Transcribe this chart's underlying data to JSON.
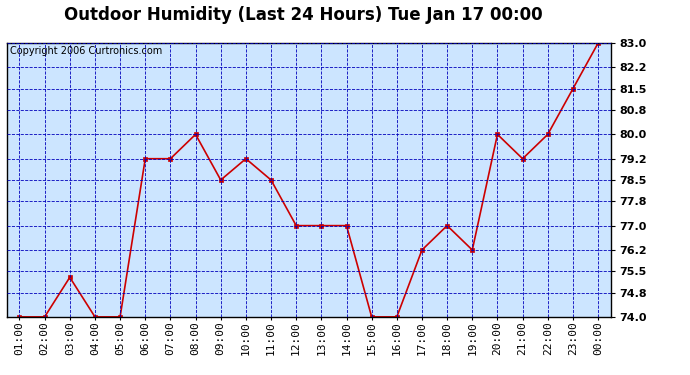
{
  "title": "Outdoor Humidity (Last 24 Hours) Tue Jan 17 00:00",
  "copyright": "Copyright 2006 Curtronics.com",
  "x_labels": [
    "01:00",
    "02:00",
    "03:00",
    "04:00",
    "05:00",
    "06:00",
    "07:00",
    "08:00",
    "09:00",
    "10:00",
    "11:00",
    "12:00",
    "13:00",
    "14:00",
    "15:00",
    "16:00",
    "17:00",
    "18:00",
    "19:00",
    "20:00",
    "21:00",
    "22:00",
    "23:00",
    "00:00"
  ],
  "y_values": [
    74.0,
    74.0,
    75.3,
    74.0,
    74.0,
    79.2,
    79.2,
    80.0,
    78.5,
    79.2,
    78.5,
    77.0,
    77.0,
    77.0,
    74.0,
    74.0,
    76.2,
    77.0,
    76.2,
    80.0,
    79.2,
    80.0,
    81.5,
    83.0
  ],
  "ylim_min": 74.0,
  "ylim_max": 83.0,
  "ytick_values": [
    74.0,
    74.8,
    75.5,
    76.2,
    77.0,
    77.8,
    78.5,
    79.2,
    80.0,
    80.8,
    81.5,
    82.2,
    83.0
  ],
  "ytick_labels": [
    "74.0",
    "74.8",
    "75.5",
    "76.2",
    "77.0",
    "77.8",
    "78.5",
    "79.2",
    "80.0",
    "80.8",
    "81.5",
    "82.2",
    "83.0"
  ],
  "line_color": "#cc0000",
  "marker": "s",
  "marker_size": 3,
  "bg_color": "#cce5ff",
  "outer_bg_color": "#ffffff",
  "grid_color": "#0000bb",
  "title_fontsize": 12,
  "copyright_fontsize": 7,
  "tick_fontsize": 8,
  "axis_bottom_color": "#404040"
}
